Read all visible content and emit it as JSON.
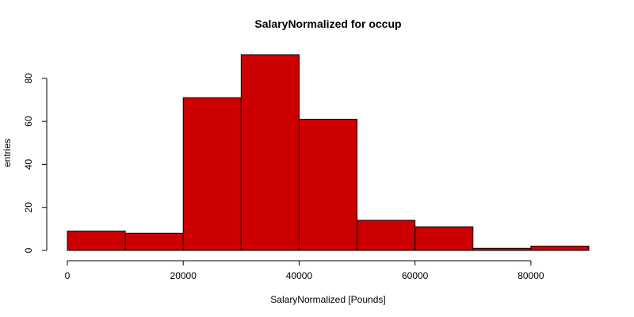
{
  "chart_data": {
    "type": "bar",
    "title": "SalaryNormalized for occup",
    "xlabel": "SalaryNormalized [Pounds]",
    "ylabel": "entries",
    "bins": [
      {
        "from": 0,
        "to": 10000,
        "count": 9
      },
      {
        "from": 10000,
        "to": 20000,
        "count": 8
      },
      {
        "from": 20000,
        "to": 30000,
        "count": 71
      },
      {
        "from": 30000,
        "to": 40000,
        "count": 91
      },
      {
        "from": 40000,
        "to": 50000,
        "count": 61
      },
      {
        "from": 50000,
        "to": 60000,
        "count": 14
      },
      {
        "from": 60000,
        "to": 70000,
        "count": 11
      },
      {
        "from": 70000,
        "to": 80000,
        "count": 1
      },
      {
        "from": 80000,
        "to": 90000,
        "count": 2
      }
    ],
    "xlim": [
      0,
      90000
    ],
    "ylim": [
      0,
      91
    ],
    "xticks": [
      0,
      20000,
      40000,
      60000,
      80000
    ],
    "yticks": [
      0,
      20,
      40,
      60,
      80
    ],
    "bar_color": "#cc0000",
    "grid": false,
    "legend": "none"
  }
}
